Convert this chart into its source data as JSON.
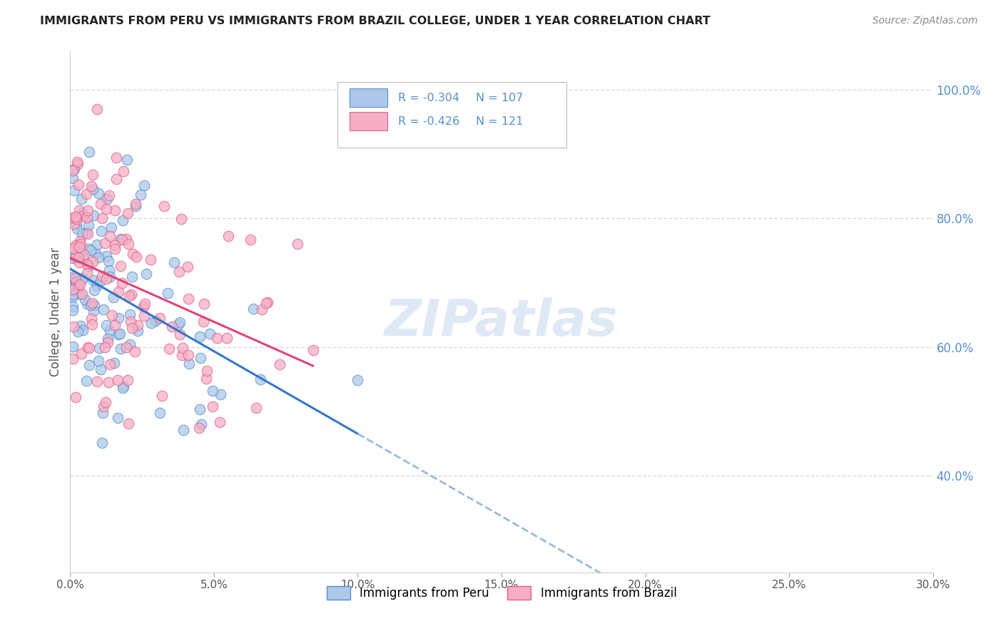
{
  "title": "IMMIGRANTS FROM PERU VS IMMIGRANTS FROM BRAZIL COLLEGE, UNDER 1 YEAR CORRELATION CHART",
  "source": "Source: ZipAtlas.com",
  "ylabel": "College, Under 1 year",
  "right_yticks": [
    "100.0%",
    "80.0%",
    "60.0%",
    "40.0%"
  ],
  "right_ytick_vals": [
    1.0,
    0.8,
    0.6,
    0.4
  ],
  "xlim": [
    0.0,
    0.3
  ],
  "ylim": [
    0.25,
    1.06
  ],
  "peru_color": "#adc8e8",
  "brazil_color": "#f5aec4",
  "peru_edge": "#5590cc",
  "brazil_edge": "#e06088",
  "trend_peru_color": "#3377cc",
  "trend_brazil_color": "#dd4477",
  "trend_peru_dash_color": "#99bbdd",
  "R_peru": -0.304,
  "N_peru": 107,
  "R_brazil": -0.426,
  "N_brazil": 121,
  "legend_label_peru": "Immigrants from Peru",
  "legend_label_brazil": "Immigrants from Brazil",
  "watermark": "ZIPatlas",
  "background_color": "#ffffff",
  "grid_color": "#d8d8d8",
  "title_color": "#222222",
  "source_color": "#888888",
  "axis_color": "#555555",
  "right_axis_color": "#5590cc"
}
